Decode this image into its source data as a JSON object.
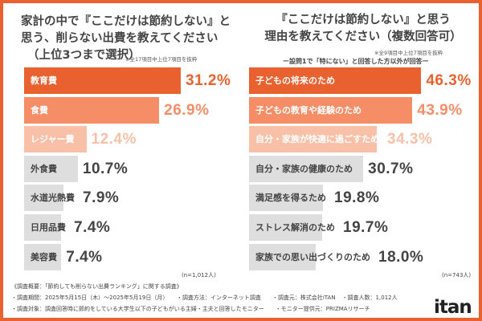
{
  "chart_data": [
    {
      "type": "bar",
      "orientation": "horizontal",
      "title": "家計の中で『ここだけは節約しない』と思う、削らない出費を教えてください（上位3つまで選択）",
      "title_lines": [
        "家計の中で『ここだけは節約しない』と",
        "思う、削らない出費を教えてください",
        "（上位3つまで選択）"
      ],
      "note": "※全17項目中上位7項目を抜粋",
      "n": "(n=1,012人)",
      "unit": "%",
      "categories": [
        "教育費",
        "食費",
        "レジャー費",
        "外食費",
        "水道光熱費",
        "日用品費",
        "美容費"
      ],
      "values": [
        31.2,
        26.9,
        12.4,
        10.7,
        7.9,
        7.4,
        7.4
      ],
      "labels": [
        "31.2%",
        "26.9%",
        "12.4%",
        "10.7%",
        "7.9%",
        "7.4%",
        "7.4%"
      ]
    },
    {
      "type": "bar",
      "orientation": "horizontal",
      "title": "『ここだけは節約しない』と思う理由を教えてください（複数回答可）",
      "title_lines": [
        "『ここだけは節約しない』と思う",
        "理由を教えてください（複数回答可）"
      ],
      "note": "※全9項目中上位7項目を抜粋",
      "subtitle": "ー設問1で「特にない」と回答した方以外が回答ー",
      "n": "(n=743人)",
      "unit": "%",
      "categories": [
        "子どもの将来のため",
        "子どもの教育や経験のため",
        "自分・家族が快適に過ごすため",
        "自分・家族の健康のため",
        "満足感を得るため",
        "ストレス解消のため",
        "家族での思い出づくりのため"
      ],
      "values": [
        46.3,
        43.9,
        34.3,
        30.7,
        19.8,
        19.7,
        18.0
      ],
      "labels": [
        "46.3%",
        "43.9%",
        "34.3%",
        "30.7%",
        "19.8%",
        "19.7%",
        "18.0%"
      ]
    }
  ],
  "colors": {
    "rank1": "#e8612f",
    "rank2": "#f58e66",
    "rank3": "#f9c0a8",
    "other": "#dedede",
    "other_text": "#444444",
    "frame": "#e8612f"
  },
  "footer": {
    "heading": "《調査概要：「節約しても削らない出費ランキング」に関する調査》",
    "line1": [
      "・調査期間：2025年5月15日（木）～2025年5月19日（月）",
      "・調査方法：インターネット調査",
      "・調査元：株式会社iTAN",
      "・調査人数：1,012人"
    ],
    "line2": [
      "・調査対象：調査回答時に節約をしている大学生以下の子どもがいる主婦・主夫と回答したモニター",
      "・モニター提供元：PRIZMAリサーチ"
    ]
  },
  "logo": "itan"
}
